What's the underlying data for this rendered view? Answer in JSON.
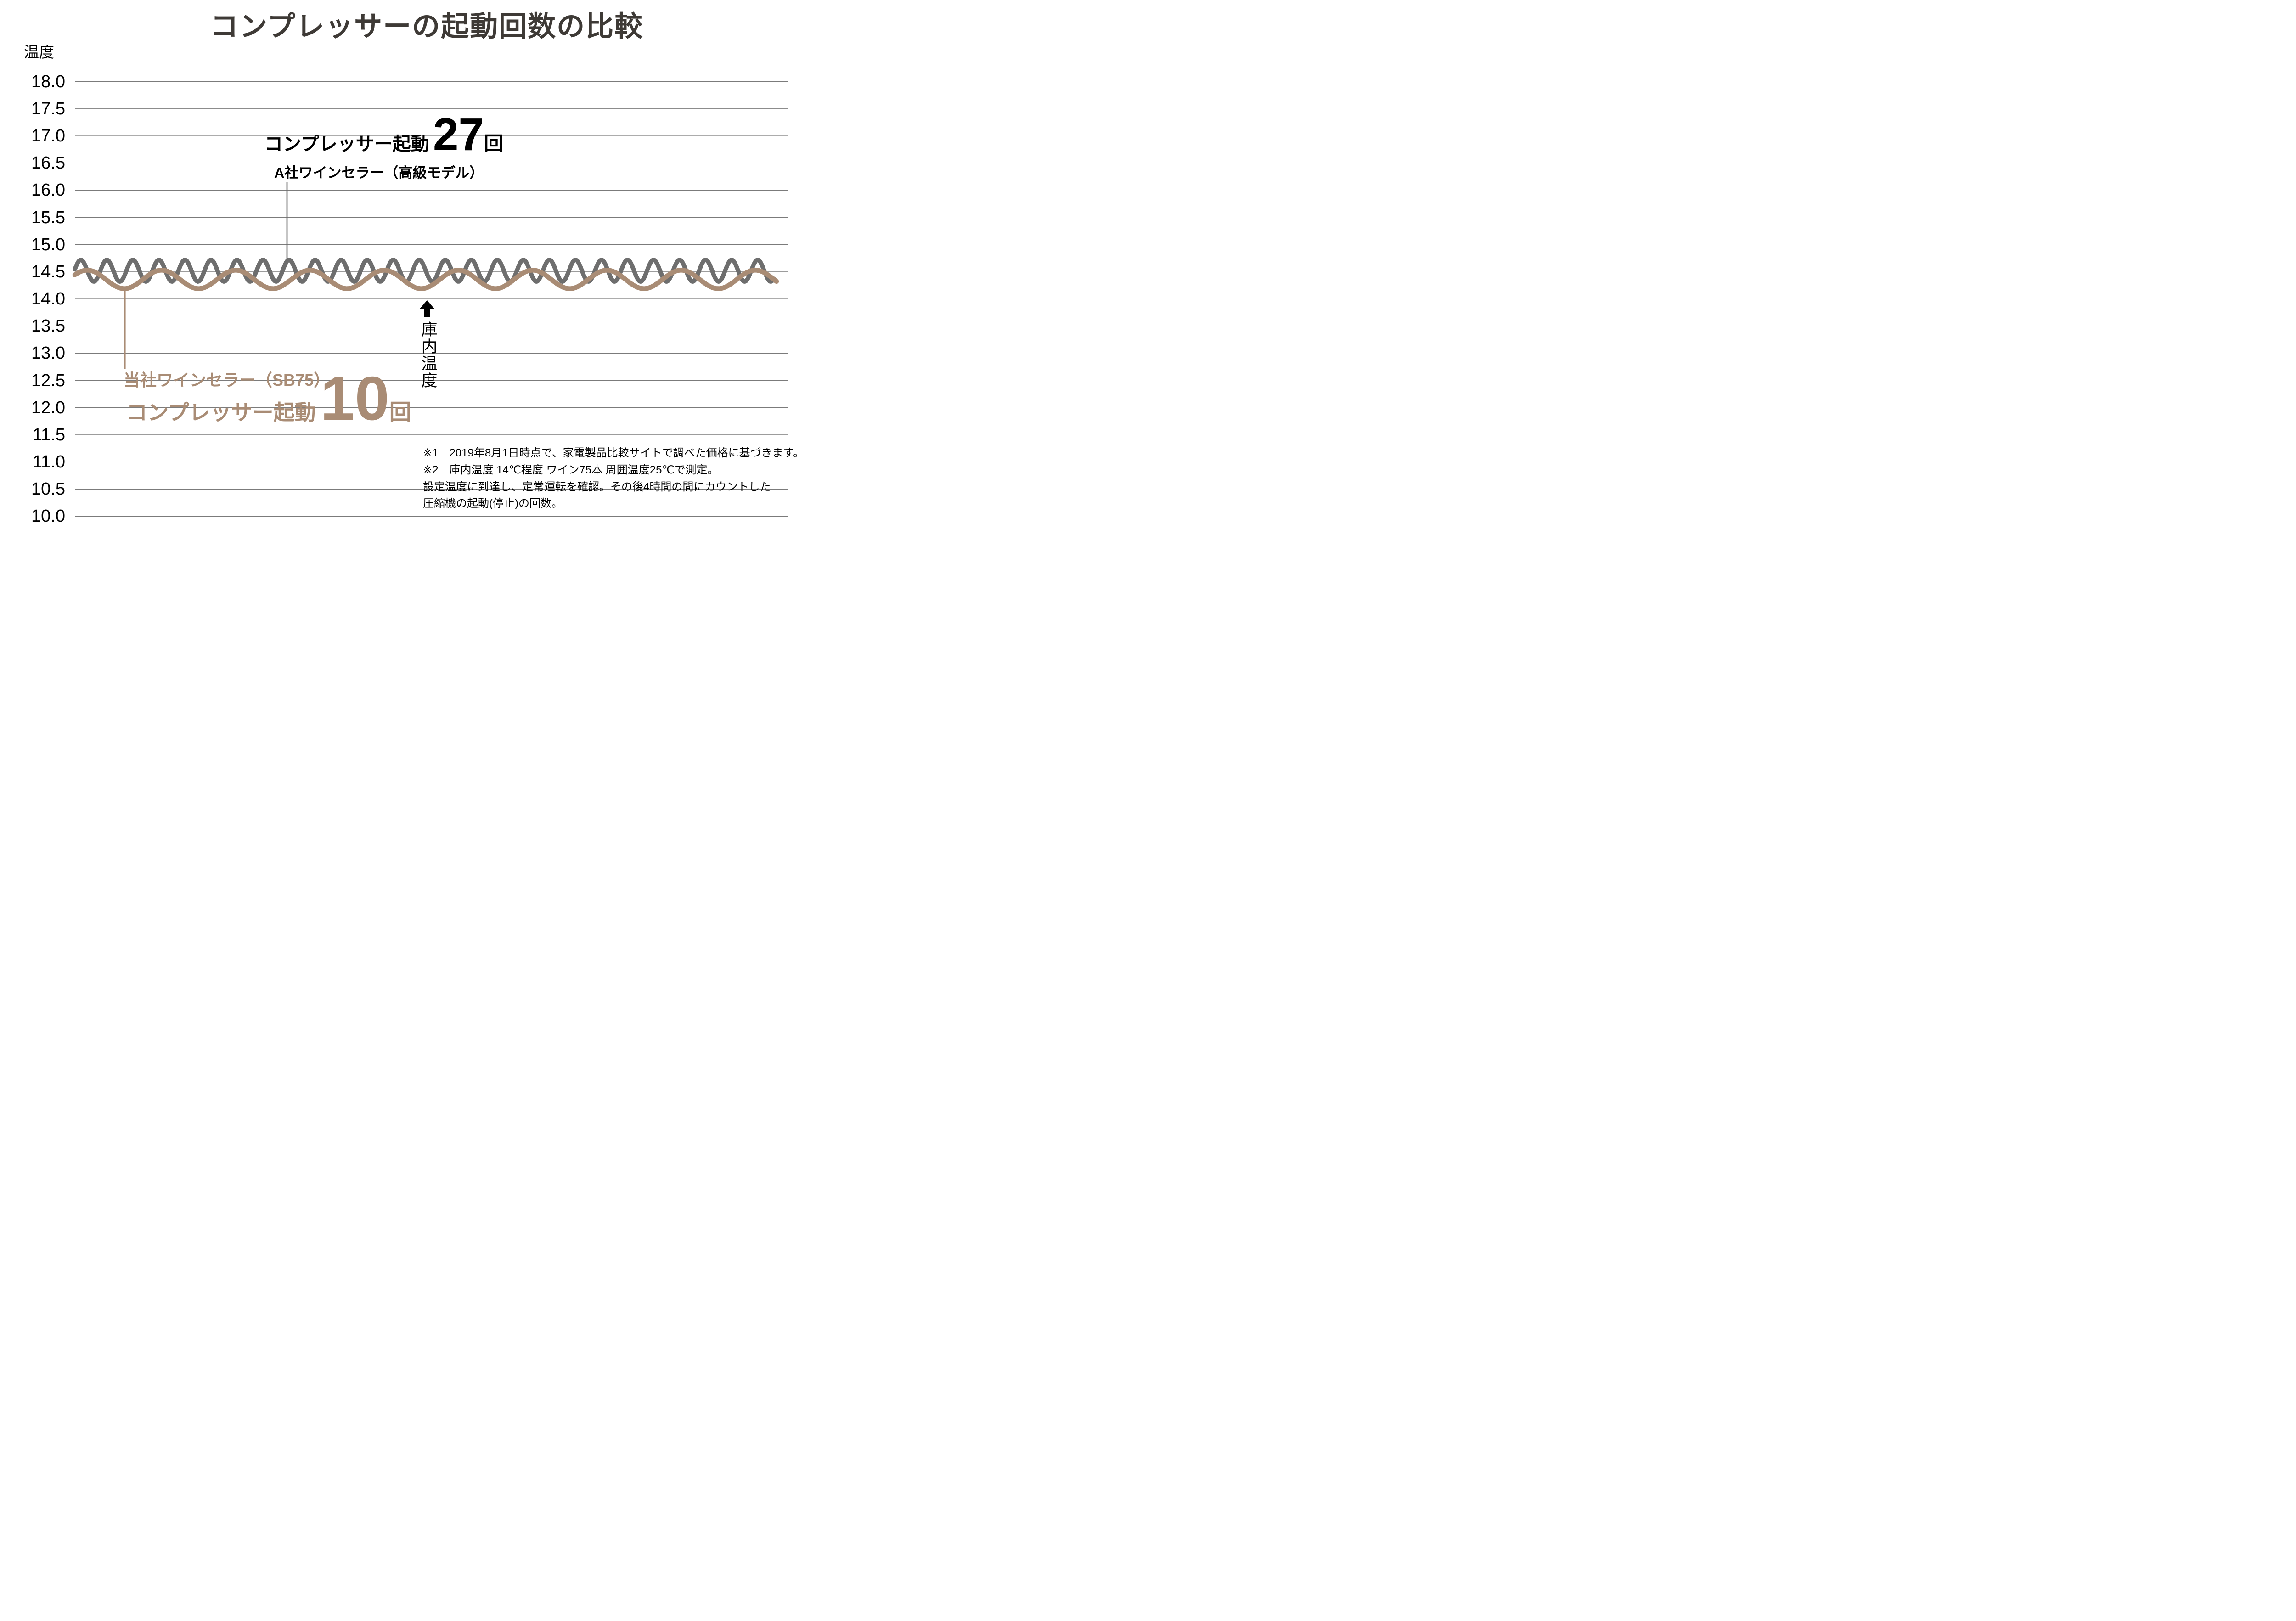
{
  "title": "コンプレッサーの起動回数の比較",
  "y_axis": {
    "label": "温度",
    "ticks": [
      "18.0",
      "17.5",
      "17.0",
      "16.5",
      "16.0",
      "15.5",
      "15.0",
      "14.5",
      "14.0",
      "13.5",
      "13.0",
      "12.5",
      "12.0",
      "11.5",
      "11.0",
      "10.5",
      "10.0"
    ]
  },
  "annotations": {
    "competitor": {
      "prefix": "コンプレッサー起動",
      "count": "27",
      "suffix": "回",
      "product": "A社ワインセラー（高級モデル）"
    },
    "own": {
      "prefix": "コンプレッサー起動",
      "count": "10",
      "suffix": "回",
      "product": "当社ワインセラー（SB75）"
    },
    "pointer_label": "庫内温度"
  },
  "footnotes": [
    "※1　2019年8月1日時点で、家電製品比較サイトで調べた価格に基づきます。",
    "※2　庫内温度 14℃程度 ワイン75本 周囲温度25℃で測定。",
    "設定温度に到達し、定常運転を確認。その後4時間の間にカウントした",
    "圧縮機の起動(停止)の回数。"
  ],
  "colors": {
    "competitor_series": "#6e6e6e",
    "own_series": "#a98c75",
    "gridline": "#7b7b7b",
    "title_text": "#3e3a36",
    "annotation_text": "#000000"
  },
  "chart_data": {
    "type": "line",
    "title": "コンプレッサーの起動回数の比較",
    "xlabel": "",
    "ylabel": "温度",
    "ylim": [
      10.0,
      18.0
    ],
    "ytick_step": 0.5,
    "grid": true,
    "legend_position": "none",
    "series": [
      {
        "name": "A社ワインセラー（高級モデル）",
        "compressor_starts": 27,
        "wave": {
          "cycles": 27,
          "center_temp": 14.52,
          "amplitude_temp": 0.2,
          "peak_temp": 14.72,
          "trough_temp": 14.32
        }
      },
      {
        "name": "当社ワインセラー（SB75）",
        "compressor_starts": 10,
        "wave": {
          "cycles": 10,
          "center_temp": 14.36,
          "amplitude_temp": 0.17,
          "peak_temp": 14.53,
          "trough_temp": 14.19
        }
      }
    ]
  }
}
